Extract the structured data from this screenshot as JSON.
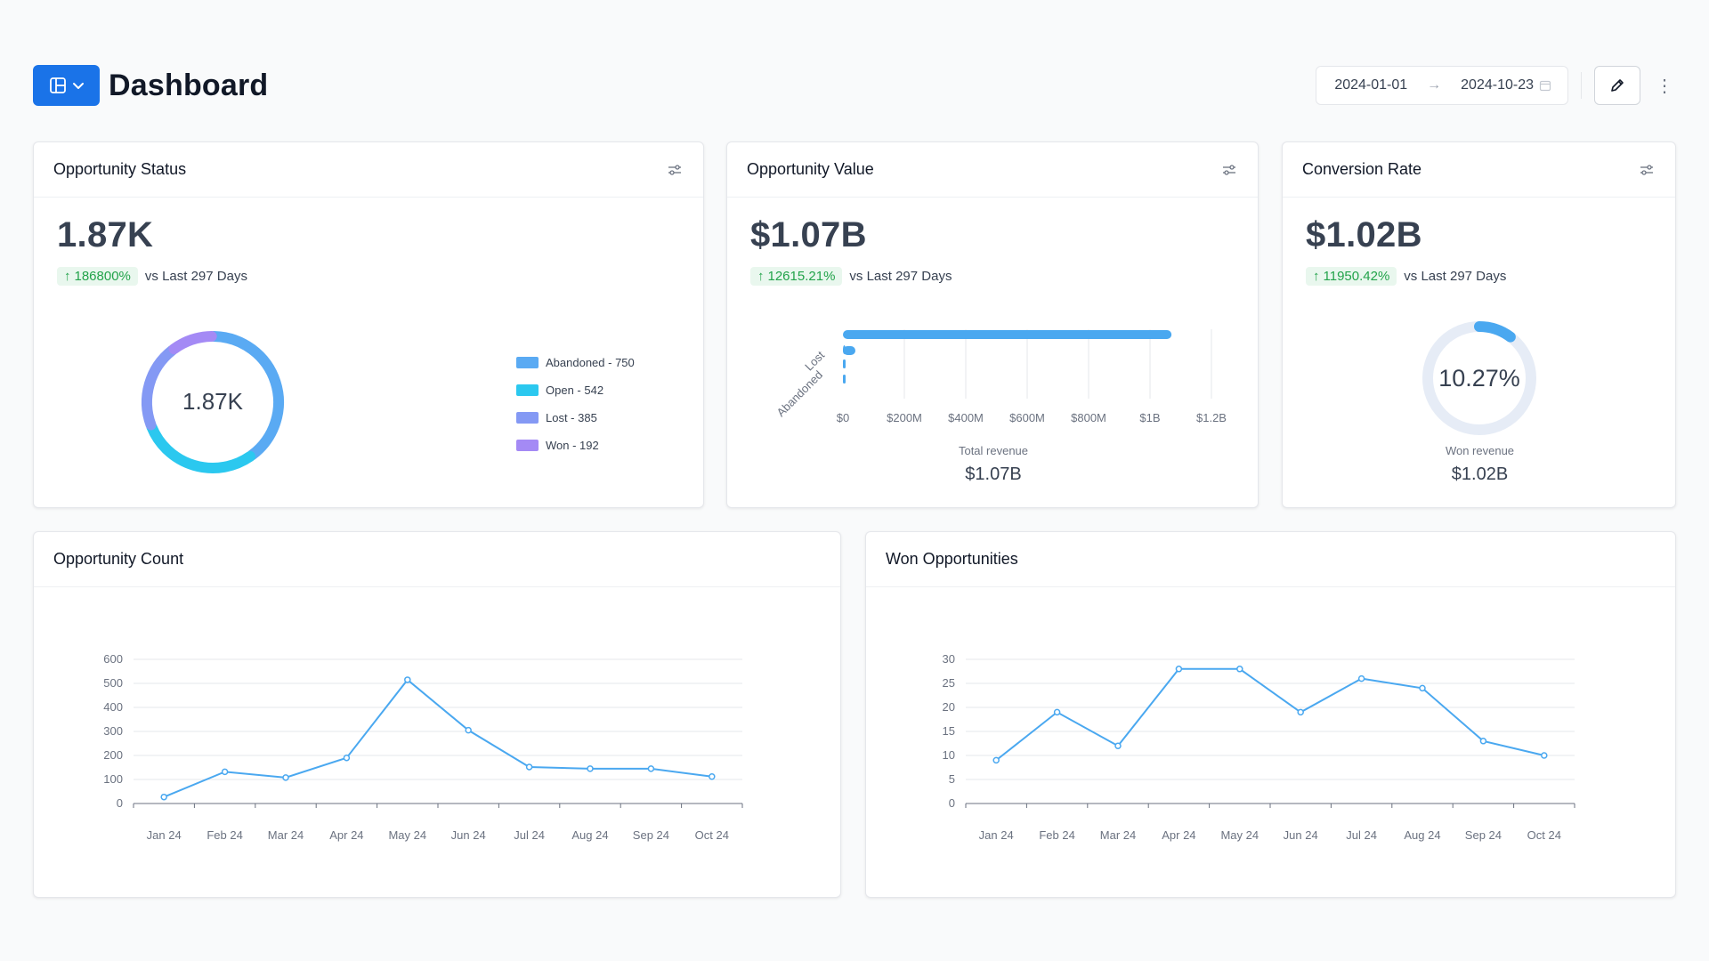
{
  "header": {
    "title": "Dashboard",
    "layout_icon": "layout-icon",
    "date_from": "2024-01-01",
    "date_to": "2024-10-23",
    "arrow": "→",
    "more": "⋮"
  },
  "opportunity_status": {
    "title": "Opportunity Status",
    "value": "1.87K",
    "delta": "186800%",
    "delta_text": "vs Last 297 Days",
    "donut_center": "1.87K",
    "legend": [
      {
        "label": "Abandoned - 750",
        "color": "#5aaaf3"
      },
      {
        "label": "Open - 542",
        "color": "#2bc8ef"
      },
      {
        "label": "Lost - 385",
        "color": "#8499f4"
      },
      {
        "label": "Won - 192",
        "color": "#a48af5"
      }
    ]
  },
  "opportunity_value": {
    "title": "Opportunity Value",
    "value": "$1.07B",
    "delta": "12615.21%",
    "delta_text": "vs Last 297 Days",
    "total_label": "Total revenue",
    "total_value": "$1.07B"
  },
  "conversion_rate": {
    "title": "Conversion Rate",
    "value": "$1.02B",
    "delta": "11950.42%",
    "delta_text": "vs Last 297 Days",
    "gauge_text": "10.27%",
    "won_label": "Won revenue",
    "won_value": "$1.02B"
  },
  "opportunity_count": {
    "title": "Opportunity Count"
  },
  "won_opportunities": {
    "title": "Won Opportunities"
  },
  "chart_data": [
    {
      "type": "pie",
      "categories": [
        "Abandoned",
        "Open",
        "Lost",
        "Won"
      ],
      "values": [
        750,
        542,
        385,
        192
      ],
      "colors": [
        "#5aaaf3",
        "#2bc8ef",
        "#8499f4",
        "#a48af5"
      ],
      "center_label": "1.87K"
    },
    {
      "type": "bar",
      "orientation": "horizontal",
      "categories": [
        "Lost",
        "Abandoned"
      ],
      "series": [
        {
          "values": [
            1070000000,
            0
          ]
        }
      ],
      "xticks": [
        "$0",
        "$200M",
        "$400M",
        "$600M",
        "$800M",
        "$1B",
        "$1.2B"
      ],
      "xlim": [
        0,
        1200000000
      ],
      "xlabel": "Total revenue"
    },
    {
      "type": "line",
      "categories": [
        "Jan 24",
        "Feb 24",
        "Mar 24",
        "Apr 24",
        "May 24",
        "Jun 24",
        "Jul 24",
        "Aug 24",
        "Sep 24",
        "Oct 24"
      ],
      "values": [
        27,
        132,
        108,
        190,
        515,
        305,
        152,
        145,
        145,
        112
      ],
      "yticks": [
        0,
        100,
        200,
        300,
        400,
        500,
        600
      ],
      "ylim": [
        0,
        600
      ],
      "color": "#4aa8f0"
    },
    {
      "type": "line",
      "categories": [
        "Jan 24",
        "Feb 24",
        "Mar 24",
        "Apr 24",
        "May 24",
        "Jun 24",
        "Jul 24",
        "Aug 24",
        "Sep 24",
        "Oct 24"
      ],
      "values": [
        9,
        19,
        12,
        28,
        28,
        19,
        26,
        24,
        13,
        10
      ],
      "yticks": [
        0,
        5,
        10,
        15,
        20,
        25,
        30
      ],
      "ylim": [
        0,
        30
      ],
      "color": "#4aa8f0"
    }
  ]
}
